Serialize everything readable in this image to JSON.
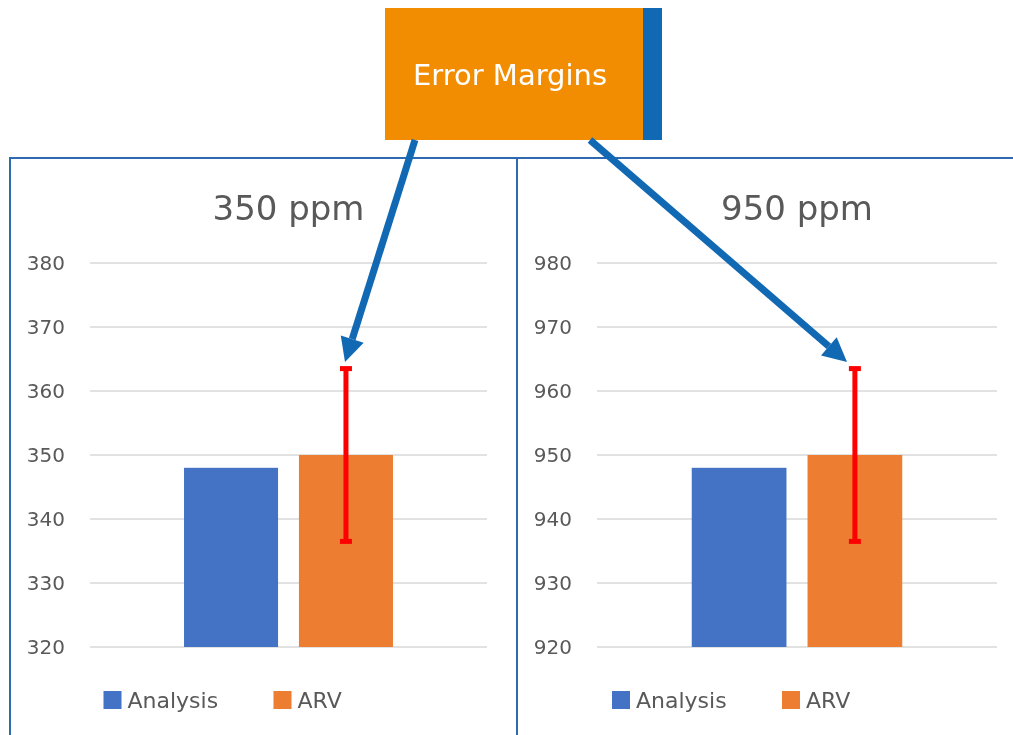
{
  "chart_data": [
    {
      "type": "bar",
      "title": "350 ppm",
      "annotations": [
        "Error Margins"
      ],
      "categories": [
        null
      ],
      "series": [
        {
          "name": "Analysis",
          "color": "#4472c4",
          "values": [
            348
          ]
        },
        {
          "name": "ARV",
          "color": "#ed7d31",
          "values": [
            350
          ],
          "errors": [
            [
              336.5,
              363.5
            ]
          ]
        }
      ],
      "ylim": [
        320,
        380
      ],
      "yticks": [
        320,
        330,
        340,
        350,
        360,
        370,
        380
      ],
      "grid": "y",
      "legend": "bottom"
    },
    {
      "type": "bar",
      "title": "950 ppm",
      "categories": [
        null
      ],
      "series": [
        {
          "name": "Analysis",
          "color": "#4472c4",
          "values": [
            948
          ]
        },
        {
          "name": "ARV",
          "color": "#ed7d31",
          "values": [
            950
          ],
          "errors": [
            [
              936.5,
              963.5
            ]
          ]
        }
      ],
      "ylim": [
        920,
        980
      ],
      "yticks": [
        920,
        930,
        940,
        950,
        960,
        970,
        980
      ],
      "grid": "y",
      "legend": "bottom"
    }
  ]
}
